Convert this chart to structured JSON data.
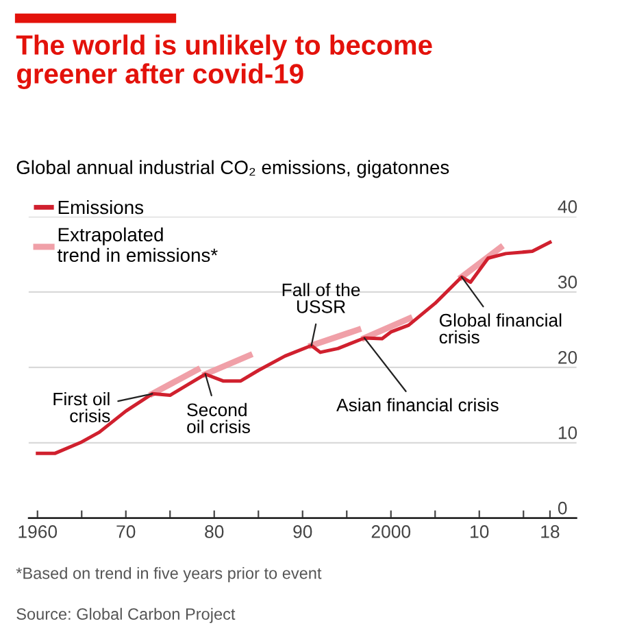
{
  "chart_data": {
    "type": "line",
    "title": "The world is unlikely to become\ngreener after covid-19",
    "subtitle": "Global annual industrial CO₂ emissions, gigatonnes",
    "series": [
      {
        "name": "Emissions",
        "color": "#d0202e",
        "x": [
          1960,
          1962,
          1965,
          1967,
          1970,
          1973,
          1975,
          1977,
          1979,
          1981,
          1983,
          1985,
          1988,
          1991,
          1992,
          1994,
          1997,
          1999,
          2000,
          2002,
          2005,
          2008,
          2009,
          2011,
          2013,
          2016,
          2018
        ],
        "values": [
          8.6,
          8.6,
          10.1,
          11.4,
          14.2,
          16.5,
          16.3,
          17.7,
          19.1,
          18.2,
          18.2,
          19.6,
          21.5,
          22.9,
          22.0,
          22.5,
          23.9,
          23.8,
          24.7,
          25.6,
          28.5,
          32.0,
          31.3,
          34.5,
          35.1,
          35.4,
          36.6
        ]
      },
      {
        "name": "Extrapolated\ntrend in emissions*",
        "color": "#f0a0a8",
        "x": [
          1973,
          1978.1,
          1978.5,
          1979,
          1984,
          1985,
          1991,
          1996.3,
          1996.6,
          1997,
          2002.1,
          2005,
          2008,
          2012.4
        ],
        "values": [
          16.5,
          19.7,
          null,
          19.1,
          21.6,
          null,
          22.9,
          25.0,
          null,
          23.9,
          26.5,
          null,
          32.0,
          35.9
        ]
      }
    ],
    "xlim": [
      1959,
      2021
    ],
    "xticks": [
      1960,
      {
        "value": 1965,
        "label": null
      },
      {
        "value": 1970,
        "label": "70"
      },
      {
        "value": 1975,
        "label": null
      },
      {
        "value": 1980,
        "label": "80"
      },
      {
        "value": 1985,
        "label": null
      },
      {
        "value": 1990,
        "label": "90"
      },
      {
        "value": 1995,
        "label": null
      },
      2000,
      {
        "value": 2005,
        "label": null
      },
      {
        "value": 2010,
        "label": "10"
      },
      {
        "value": 2015,
        "label": null
      },
      {
        "value": 2018,
        "label": "18"
      }
    ],
    "ylim": [
      0,
      40
    ],
    "yticks": [
      0,
      10,
      20,
      30,
      40
    ],
    "grid": "y",
    "legend": "top left",
    "annotations": [
      {
        "text": "First oil\ncrisis",
        "x": 1973,
        "y": 16.5
      },
      {
        "text": "Second\noil crisis",
        "x": 1979,
        "y": 19.1
      },
      {
        "text": "Fall of the\nUSSR",
        "x": 1991,
        "y": 22.9
      },
      {
        "text": "Asian financial crisis",
        "x": 1997,
        "y": 23.9
      },
      {
        "text": "Global financial\ncrisis",
        "x": 2008,
        "y": 32.0
      },
      "*Based on trend in five years prior to event",
      "Source: Global Carbon Project"
    ]
  }
}
